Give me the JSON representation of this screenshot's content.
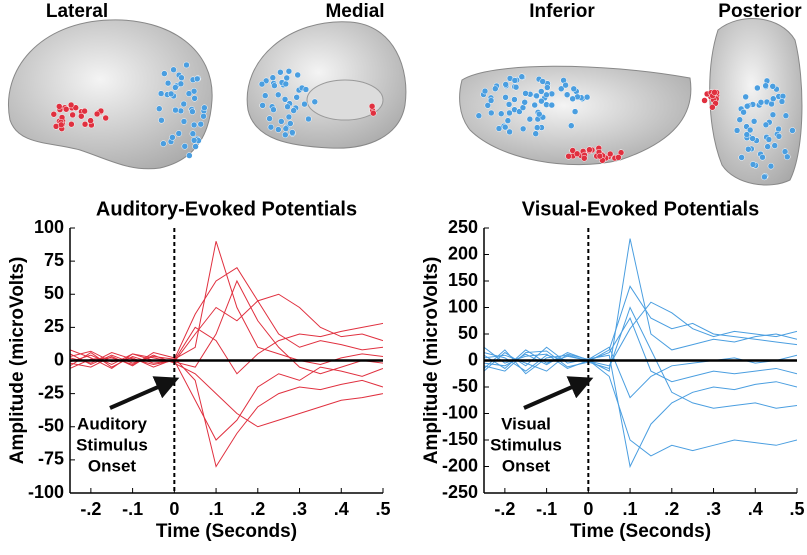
{
  "brain_views": [
    "Lateral",
    "Medial",
    "Inferior",
    "Posterior"
  ],
  "chart_data": [
    {
      "type": "line",
      "title": "Auditory-Evoked Potentials",
      "ylabel": "Amplitude (microVolts)",
      "xlabel": "Time (Seconds)",
      "annotation": [
        "Auditory",
        "Stimulus",
        "Onset"
      ],
      "color": "#e0303f",
      "xlim": [
        -0.25,
        0.5
      ],
      "ylim": [
        -100,
        100
      ],
      "xticks": [
        {
          "value": -0.2,
          "label": "-.2"
        },
        {
          "value": -0.1,
          "label": "-.1"
        },
        0,
        {
          "value": 0.1,
          "label": ".1"
        },
        {
          "value": 0.2,
          "label": ".2"
        },
        {
          "value": 0.3,
          "label": ".3"
        },
        {
          "value": 0.4,
          "label": ".4"
        },
        {
          "value": 0.5,
          "label": ".5"
        }
      ],
      "yticks": [
        -100,
        -75,
        -50,
        -25,
        0,
        25,
        50,
        75,
        100
      ],
      "x": [
        -0.25,
        -0.2,
        -0.15,
        -0.1,
        -0.05,
        0,
        0.05,
        0.1,
        0.15,
        0.2,
        0.25,
        0.3,
        0.35,
        0.4,
        0.45,
        0.5
      ],
      "series": [
        {
          "values": [
            5,
            -3,
            4,
            -2,
            3,
            1,
            35,
            60,
            70,
            45,
            20,
            10,
            15,
            12,
            8,
            10
          ]
        },
        {
          "values": [
            -4,
            6,
            -5,
            3,
            -2,
            0,
            -30,
            -60,
            -45,
            -20,
            -10,
            -15,
            -5,
            -8,
            -12,
            -6
          ]
        },
        {
          "values": [
            8,
            2,
            -6,
            5,
            0,
            -1,
            20,
            40,
            30,
            45,
            50,
            40,
            25,
            18,
            20,
            15
          ]
        },
        {
          "values": [
            -2,
            -5,
            3,
            -4,
            6,
            2,
            -15,
            -80,
            -55,
            -35,
            -25,
            -20,
            -22,
            -18,
            -15,
            -20
          ]
        },
        {
          "values": [
            3,
            7,
            -1,
            2,
            -5,
            1,
            10,
            90,
            40,
            10,
            5,
            0,
            -3,
            2,
            5,
            3
          ]
        },
        {
          "values": [
            -6,
            1,
            2,
            -3,
            4,
            -2,
            -10,
            -25,
            -40,
            -50,
            -45,
            -40,
            -35,
            -30,
            -28,
            -25
          ]
        },
        {
          "values": [
            2,
            -2,
            6,
            1,
            -3,
            0,
            25,
            15,
            -10,
            5,
            15,
            20,
            18,
            22,
            25,
            28
          ]
        },
        {
          "values": [
            -1,
            4,
            -3,
            5,
            2,
            -1,
            -5,
            20,
            60,
            30,
            10,
            -5,
            -10,
            -5,
            0,
            -2
          ]
        }
      ]
    },
    {
      "type": "line",
      "title": "Visual-Evoked Potentials",
      "ylabel": "Amplitude (microVolts)",
      "xlabel": "Time (Seconds)",
      "annotation": [
        "Visual",
        "Stimulus",
        "Onset"
      ],
      "color": "#4a9ee0",
      "xlim": [
        -0.25,
        0.5
      ],
      "ylim": [
        -250,
        250
      ],
      "xticks": [
        {
          "value": -0.2,
          "label": "-.2"
        },
        {
          "value": -0.1,
          "label": "-.1"
        },
        0,
        {
          "value": 0.1,
          "label": ".1"
        },
        {
          "value": 0.2,
          "label": ".2"
        },
        {
          "value": 0.3,
          "label": ".3"
        },
        {
          "value": 0.4,
          "label": ".4"
        },
        {
          "value": 0.5,
          "label": ".5"
        }
      ],
      "yticks": [
        -250,
        -200,
        -150,
        -100,
        -50,
        0,
        50,
        100,
        150,
        200,
        250
      ],
      "x": [
        -0.25,
        -0.2,
        -0.15,
        -0.1,
        -0.05,
        0,
        0.05,
        0.1,
        0.15,
        0.2,
        0.25,
        0.3,
        0.35,
        0.4,
        0.45,
        0.5
      ],
      "series": [
        {
          "values": [
            10,
            -15,
            20,
            -5,
            8,
            0,
            -20,
            230,
            50,
            20,
            30,
            40,
            35,
            45,
            50,
            40
          ]
        },
        {
          "values": [
            -20,
            15,
            -10,
            25,
            -5,
            3,
            10,
            -200,
            -120,
            -80,
            -60,
            -50,
            -55,
            -45,
            -40,
            -50
          ]
        },
        {
          "values": [
            15,
            5,
            -20,
            10,
            0,
            -2,
            20,
            140,
            80,
            60,
            70,
            50,
            45,
            40,
            35,
            30
          ]
        },
        {
          "values": [
            -5,
            -10,
            12,
            -8,
            15,
            1,
            -30,
            -150,
            -180,
            -160,
            -170,
            -160,
            -150,
            -155,
            -160,
            -150
          ]
        },
        {
          "values": [
            25,
            -5,
            8,
            12,
            -15,
            0,
            15,
            80,
            -20,
            -40,
            -30,
            -20,
            -25,
            -20,
            -15,
            -25
          ]
        },
        {
          "values": [
            -15,
            20,
            -25,
            5,
            10,
            -1,
            -10,
            60,
            110,
            90,
            60,
            45,
            55,
            50,
            45,
            55
          ]
        },
        {
          "values": [
            5,
            10,
            -5,
            -20,
            12,
            2,
            25,
            -70,
            -30,
            -10,
            -5,
            0,
            5,
            -5,
            0,
            10
          ]
        },
        {
          "values": [
            -10,
            -20,
            15,
            18,
            -12,
            -3,
            -15,
            100,
            20,
            -60,
            -80,
            -90,
            -85,
            -80,
            -90,
            -85
          ]
        }
      ]
    }
  ]
}
